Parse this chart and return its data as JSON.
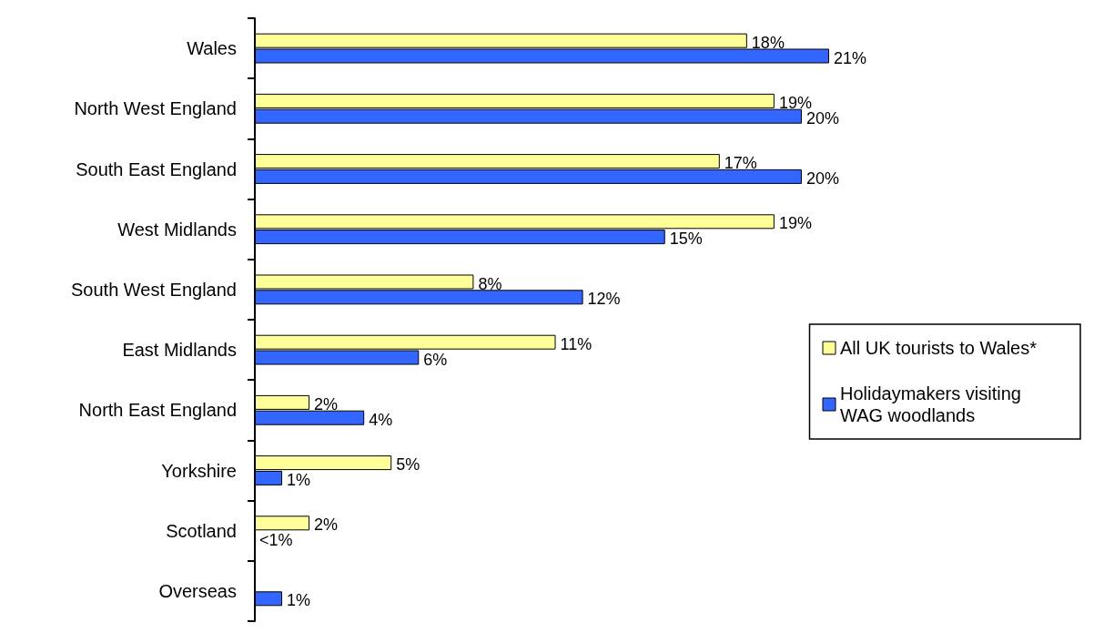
{
  "chart_data": {
    "type": "bar",
    "orientation": "horizontal",
    "categories": [
      "Wales",
      "North West England",
      "South East England",
      "West Midlands",
      "South West England",
      "East Midlands",
      "North East England",
      "Yorkshire",
      "Scotland",
      "Overseas"
    ],
    "series": [
      {
        "name": "All UK tourists to Wales*",
        "color": "#ffff99",
        "values": [
          18,
          19,
          17,
          19,
          8,
          11,
          2,
          5,
          2,
          null
        ],
        "value_labels": [
          "18%",
          "19%",
          "17%",
          "19%",
          "8%",
          "11%",
          "2%",
          "5%",
          "2%",
          null
        ]
      },
      {
        "name": "Holidaymakers visiting WAG woodlands",
        "color": "#3366ff",
        "values": [
          21,
          20,
          20,
          15,
          12,
          6,
          4,
          1,
          0,
          1
        ],
        "value_labels": [
          "21%",
          "20%",
          "20%",
          "15%",
          "12%",
          "6%",
          "4%",
          "1%",
          "<1%",
          "1%"
        ]
      }
    ],
    "legend": "right"
  }
}
